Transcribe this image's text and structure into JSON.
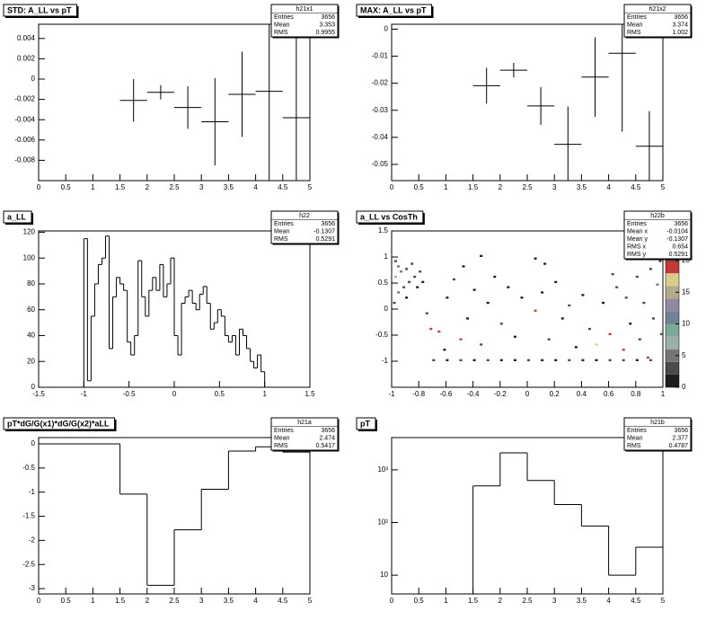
{
  "chart_data": [
    {
      "type": "errorbar",
      "title": "STD: A_LL vs pT",
      "stats": {
        "name": "h21x1",
        "rows": [
          {
            "label": "Entries",
            "value": 3656
          },
          {
            "label": "Mean",
            "value": 3.353
          },
          {
            "label": "RMS",
            "value": 0.9955
          }
        ]
      },
      "x": [
        1.75,
        2.25,
        2.75,
        3.25,
        3.75,
        4.25,
        4.75
      ],
      "values": [
        -0.0021,
        -0.0013,
        -0.0028,
        -0.0042,
        -0.0015,
        -0.0012,
        -0.0038
      ],
      "errors": [
        0.0021,
        0.0007,
        0.0021,
        0.0043,
        0.0042,
        0.012,
        0.014
      ],
      "xerr": 0.25,
      "color": "#000000",
      "xlim": [
        0,
        5
      ],
      "xticks": [
        0,
        0.5,
        1,
        1.5,
        2,
        2.5,
        3,
        3.5,
        4,
        4.5,
        5
      ],
      "ylim": [
        -0.01,
        0.0054
      ],
      "yticks": [
        -0.008,
        -0.006,
        -0.004,
        -0.002,
        0,
        0.002,
        0.004
      ]
    },
    {
      "type": "errorbar",
      "title": "MAX: A_LL vs pT",
      "stats": {
        "name": "h21x2",
        "rows": [
          {
            "label": "Entries",
            "value": 3656
          },
          {
            "label": "Mean",
            "value": 3.374
          },
          {
            "label": "RMS",
            "value": 1.002
          }
        ]
      },
      "x": [
        1.75,
        2.25,
        2.75,
        3.25,
        3.75,
        4.25,
        4.75
      ],
      "values": [
        -0.0209,
        -0.0152,
        -0.0284,
        -0.0426,
        -0.0177,
        -0.0089,
        -0.0433
      ],
      "errors": [
        0.0066,
        0.0027,
        0.007,
        0.014,
        0.0147,
        0.029,
        0.013
      ],
      "xerr": 0.25,
      "color": "#000000",
      "xlim": [
        0,
        5
      ],
      "xticks": [
        0,
        0.5,
        1,
        1.5,
        2,
        2.5,
        3,
        3.5,
        4,
        4.5,
        5
      ],
      "ylim": [
        -0.056,
        0.0018
      ],
      "yticks": [
        -0.05,
        -0.04,
        -0.03,
        -0.02,
        -0.01,
        0
      ]
    },
    {
      "type": "histogram",
      "title": "a_LL",
      "stats": {
        "name": "h22",
        "rows": [
          {
            "label": "Entries",
            "value": 3656
          },
          {
            "label": "Mean",
            "value": -0.1307
          },
          {
            "label": "RMS",
            "value": 0.5291
          }
        ]
      },
      "bins": [
        -1,
        -0.96,
        -0.92,
        -0.88,
        -0.84,
        -0.8,
        -0.76,
        -0.72,
        -0.68,
        -0.64,
        -0.6,
        -0.56,
        -0.52,
        -0.48,
        -0.44,
        -0.4,
        -0.36,
        -0.32,
        -0.28,
        -0.24,
        -0.2,
        -0.16,
        -0.12,
        -0.08,
        -0.04,
        0,
        0.04,
        0.08,
        0.12,
        0.16,
        0.2,
        0.24,
        0.28,
        0.32,
        0.36,
        0.4,
        0.44,
        0.48,
        0.52,
        0.56,
        0.6,
        0.64,
        0.68,
        0.72,
        0.76,
        0.8,
        0.84,
        0.88,
        0.92,
        0.96,
        1
      ],
      "values": [
        115,
        5,
        55,
        80,
        95,
        100,
        117,
        30,
        70,
        85,
        80,
        75,
        35,
        25,
        40,
        98,
        70,
        55,
        75,
        85,
        75,
        95,
        70,
        80,
        100,
        40,
        25,
        65,
        70,
        75,
        65,
        60,
        72,
        78,
        65,
        45,
        50,
        60,
        55,
        40,
        35,
        40,
        25,
        45,
        40,
        30,
        20,
        15,
        25,
        12
      ],
      "color": "#000000",
      "xlim": [
        -1.5,
        1.5
      ],
      "xticks": [
        -1.5,
        -1,
        -0.5,
        0,
        0.5,
        1,
        1.5
      ],
      "ylim": [
        0,
        121
      ],
      "yticks": [
        0,
        20,
        40,
        60,
        80,
        100,
        120
      ]
    },
    {
      "type": "heatmap",
      "title": "a_LL vs CosTh",
      "stats": {
        "name": "h22b",
        "rows": [
          {
            "label": "Entries",
            "value": 3656
          },
          {
            "label": "Mean x",
            "value": -0.0104
          },
          {
            "label": "Mean y",
            "value": -0.1307
          },
          {
            "label": "RMS x",
            "value": 0.654
          },
          {
            "label": "RMS y",
            "value": 0.5291
          }
        ]
      },
      "x": [
        -0.98,
        -0.96,
        -0.94,
        -0.98,
        -0.9,
        -0.88,
        -0.92,
        -0.86,
        -0.84,
        -0.96,
        -0.8,
        -0.82,
        -0.99,
        -0.9,
        -0.78,
        -0.7,
        -0.6,
        -0.5,
        -0.4,
        -0.3,
        -0.2,
        -0.1,
        0,
        0.1,
        0.2,
        0.3,
        0.4,
        0.5,
        0.6,
        0.7,
        0.8,
        0.9,
        -0.72,
        -0.66,
        -0.5,
        -0.6,
        -0.55,
        -0.45,
        -0.4,
        -0.35,
        -0.3,
        -0.25,
        -0.2,
        -0.15,
        -0.1,
        -0.05,
        0.05,
        0.1,
        0.15,
        0.2,
        0.25,
        0.3,
        0.35,
        0.4,
        0.45,
        0.5,
        0.55,
        0.6,
        0.65,
        0.7,
        0.72,
        0.75,
        0.8,
        0.82,
        0.85,
        0.88,
        0.9,
        0.92,
        0.95,
        0.97,
        0.98,
        -0.62,
        -0.48,
        0.12,
        -0.75,
        0.62,
        -0.35,
        0.05
      ],
      "y": [
        0.9,
        0.8,
        0.7,
        0.6,
        0.75,
        0.5,
        0.4,
        0.85,
        0.6,
        0.3,
        0.7,
        0.4,
        0.1,
        0.2,
        0.5,
        -1,
        -1,
        -1,
        -1,
        -1,
        -1,
        -1,
        -1,
        -1,
        -1,
        -1,
        -1,
        -1,
        -1,
        -1,
        -1,
        -1,
        -0.4,
        -0.45,
        -0.6,
        0.2,
        0.55,
        -0.2,
        0.35,
        -0.7,
        0.1,
        0.6,
        -0.3,
        0.4,
        -0.55,
        0.2,
        -0.05,
        0.3,
        -0.6,
        0.5,
        -0.2,
        0.05,
        -0.75,
        0.25,
        -0.4,
        -0.7,
        0.1,
        -0.5,
        0.4,
        -0.8,
        0.2,
        -0.3,
        0.6,
        -0.6,
        0.1,
        -0.95,
        0.75,
        -0.2,
        0.45,
        0.9,
        -0.5,
        -0.8,
        0.8,
        0.85,
        -0.1,
        0.65,
        1,
        0.95
      ],
      "values": [
        3,
        5,
        4,
        6,
        3,
        2,
        3,
        2,
        2,
        4,
        2,
        1,
        2,
        1,
        1,
        2,
        1,
        3,
        1,
        2,
        1,
        1,
        2,
        1,
        1,
        2,
        1,
        1,
        2,
        3,
        1,
        2,
        18,
        20,
        19,
        1,
        2,
        1,
        1,
        2,
        1,
        1,
        2,
        1,
        1,
        1,
        18,
        1,
        2,
        1,
        1,
        2,
        1,
        1,
        2,
        17,
        1,
        19,
        2,
        18,
        2,
        1,
        2,
        3,
        2,
        19,
        3,
        2,
        4,
        2,
        3,
        1,
        1,
        1,
        2,
        2,
        1,
        1
      ],
      "xbin": 0.02,
      "ybin": 0.04,
      "palette": [
        "#1e1e1e",
        "#4a4a4a",
        "#767676",
        "#9ab0ac",
        "#7fa89a",
        "#6f8296",
        "#908aa0",
        "#b4a890",
        "#d8cc88",
        "#c03a3a"
      ],
      "xlim": [
        -1,
        1
      ],
      "xticks": [
        -1,
        -0.8,
        -0.6,
        -0.4,
        -0.2,
        0,
        0.2,
        0.4,
        0.6,
        0.8,
        1
      ],
      "ylim": [
        -1.5,
        1.5
      ],
      "yticks": [
        -1,
        -0.5,
        0,
        0.5,
        1,
        1.5
      ],
      "zlim": [
        0,
        20
      ],
      "zticks": [
        0,
        5,
        10,
        15,
        20
      ]
    },
    {
      "type": "histogram",
      "title": "pT*dG/G(x1)*dG/G(x2)*aLL",
      "stats": {
        "name": "h21a",
        "rows": [
          {
            "label": "Entries",
            "value": 3656
          },
          {
            "label": "Mean",
            "value": 2.474
          },
          {
            "label": "RMS",
            "value": 0.5417
          }
        ]
      },
      "bins": [
        0,
        0.5,
        1,
        1.5,
        2,
        2.5,
        3,
        3.5,
        4,
        4.5,
        5
      ],
      "values": [
        0,
        0,
        0,
        -1.04,
        -2.93,
        -1.78,
        -0.94,
        -0.15,
        -0.06,
        -0.17
      ],
      "color": "#000000",
      "xlim": [
        0,
        5
      ],
      "xticks": [
        0,
        0.5,
        1,
        1.5,
        2,
        2.5,
        3,
        3.5,
        4,
        4.5,
        5
      ],
      "ylim": [
        -3.11,
        0.13
      ],
      "yticks": [
        -3,
        -2.5,
        -2,
        -1.5,
        -1,
        -0.5,
        0
      ]
    },
    {
      "type": "histogram",
      "title": "pT",
      "log_y": true,
      "stats": {
        "name": "h21b",
        "rows": [
          {
            "label": "Entries",
            "value": 3656
          },
          {
            "label": "Mean",
            "value": 2.377
          },
          {
            "label": "RMS",
            "value": 0.4787
          }
        ]
      },
      "bins": [
        0,
        0.5,
        1,
        1.5,
        2,
        2.5,
        3,
        3.5,
        4,
        4.5,
        5
      ],
      "values": [
        0,
        0,
        0,
        495,
        2100,
        627,
        220,
        86,
        10,
        34
      ],
      "color": "#000000",
      "xlim": [
        0,
        5
      ],
      "xticks": [
        0,
        0.5,
        1,
        1.5,
        2,
        2.5,
        3,
        3.5,
        4,
        4.5,
        5
      ],
      "ylim": [
        4.4,
        4100
      ],
      "yticks": [
        10,
        {
          "value": 100,
          "label": "10²"
        },
        {
          "value": 1000,
          "label": "10³"
        }
      ]
    }
  ]
}
